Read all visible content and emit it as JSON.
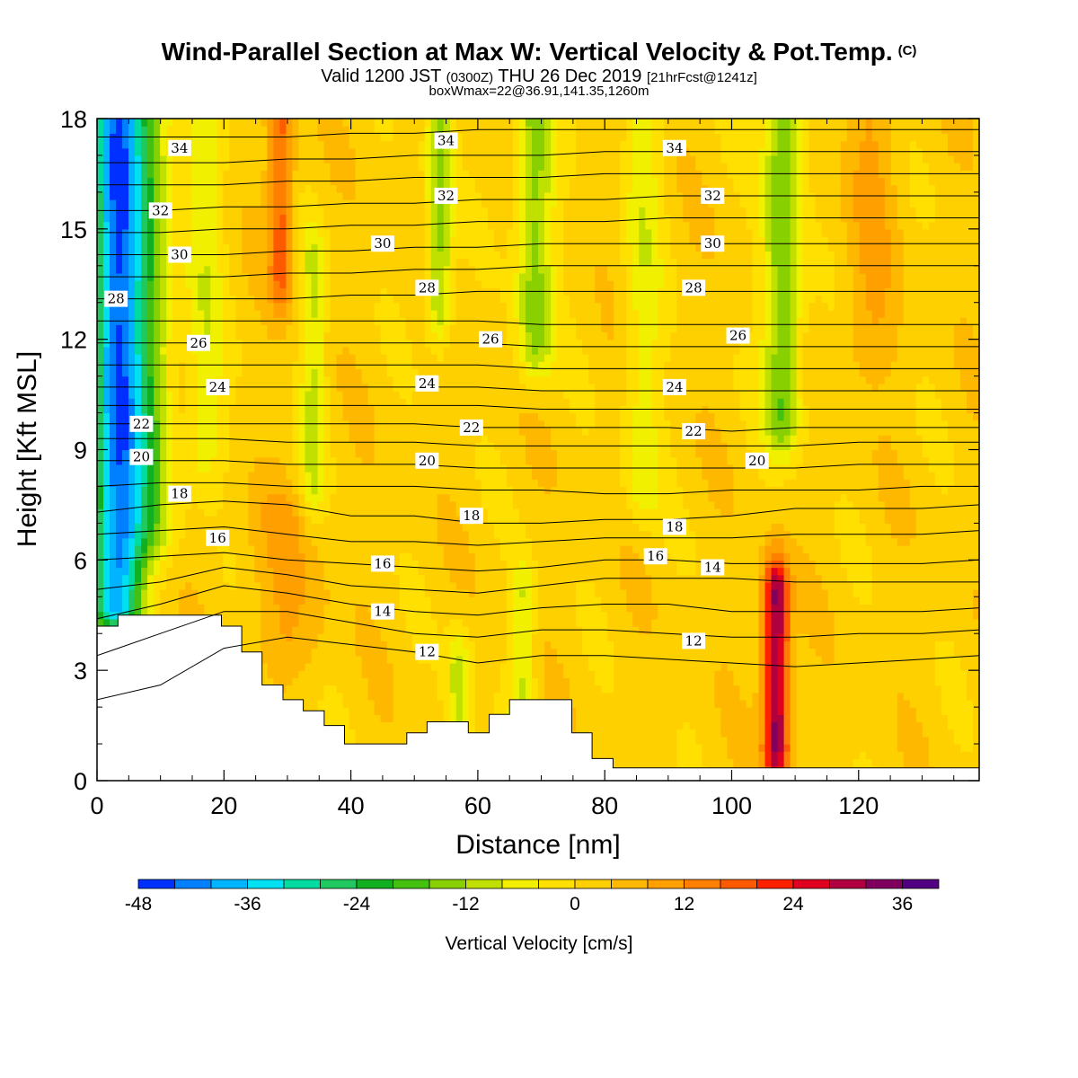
{
  "title": {
    "main": "Wind-Parallel Section at Max W: Vertical Velocity & Pot.Temp.",
    "copyright": "(C)",
    "valid_prefix": "Valid 1200 JST",
    "valid_z": "(0300Z)",
    "valid_date": "THU 26 Dec 2019",
    "valid_fcst": "[21hrFcst@1241z]",
    "box": "boxWmax=22@36.91,141.35,1260m"
  },
  "chart_data": {
    "type": "heatmap",
    "xlabel": "Distance [nm]",
    "ylabel": "Height [Kft MSL]",
    "xlim": [
      0,
      139
    ],
    "ylim": [
      0,
      18
    ],
    "xticks": [
      0,
      20,
      40,
      60,
      80,
      100,
      120
    ],
    "yticks": [
      0,
      3,
      6,
      9,
      12,
      15,
      18
    ],
    "colorbar": {
      "label": "Vertical Velocity [cm/s]",
      "ticks": [
        -48,
        -36,
        -24,
        -12,
        0,
        12,
        24,
        36
      ],
      "levels": [
        -48,
        -44,
        -40,
        -36,
        -32,
        -28,
        -24,
        -20,
        -16,
        -12,
        -8,
        -4,
        0,
        4,
        8,
        12,
        16,
        20,
        24,
        28,
        32,
        36,
        40
      ],
      "colors": [
        "#0030ff",
        "#0080ff",
        "#00b4ff",
        "#00e0f0",
        "#00dca0",
        "#20c860",
        "#10b020",
        "#44c010",
        "#88d000",
        "#c0e000",
        "#f0f000",
        "#ffe000",
        "#ffd000",
        "#ffb800",
        "#ffa000",
        "#ff8000",
        "#ff5a00",
        "#ff2000",
        "#e00020",
        "#b00040",
        "#800060",
        "#500080"
      ]
    },
    "field": {
      "background_value": 2,
      "features": [
        {
          "x": 3,
          "y0": 5,
          "y1": 18,
          "width": 4,
          "value": -40
        },
        {
          "x": 8,
          "y0": 7,
          "y1": 18,
          "width": 4,
          "value": -14
        },
        {
          "x": 17,
          "y0": 9,
          "y1": 18,
          "width": 3,
          "value": -6
        },
        {
          "x": 29,
          "y0": 14,
          "y1": 18,
          "width": 2,
          "value": 18
        },
        {
          "x": 34,
          "y0": 8,
          "y1": 14,
          "width": 2,
          "value": -8
        },
        {
          "x": 54,
          "y0": 13,
          "y1": 18,
          "width": 2,
          "value": -14
        },
        {
          "x": 69,
          "y0": 12,
          "y1": 18,
          "width": 3,
          "value": -14
        },
        {
          "x": 86,
          "y0": 8,
          "y1": 18,
          "width": 3,
          "value": -6
        },
        {
          "x": 108,
          "y0": 10,
          "y1": 18,
          "width": 3,
          "value": -16
        },
        {
          "x": 107,
          "y0": 1,
          "y1": 5,
          "width": 2,
          "value": 34
        },
        {
          "x": 57,
          "y0": 1,
          "y1": 3,
          "width": 2,
          "value": -10
        },
        {
          "x": 67,
          "y0": 2,
          "y1": 5,
          "width": 2,
          "value": -8
        },
        {
          "x": 122,
          "y0": 12,
          "y1": 18,
          "width": 4,
          "value": 8
        },
        {
          "x": 30,
          "y0": 4,
          "y1": 7,
          "width": 6,
          "value": 8
        }
      ]
    },
    "terrain": {
      "x": [
        0,
        3.3,
        3.3,
        19.6,
        19.6,
        22.8,
        22.8,
        26,
        26,
        29.3,
        29.3,
        32.5,
        32.5,
        35.8,
        35.8,
        39,
        39,
        48.8,
        48.8,
        52,
        52,
        58.5,
        58.5,
        61.8,
        61.8,
        65,
        65,
        74.8,
        74.8,
        78,
        78,
        81.3,
        81.3,
        139
      ],
      "height": [
        4.2,
        4.2,
        4.5,
        4.5,
        4.2,
        4.2,
        3.5,
        3.5,
        2.6,
        2.6,
        2.2,
        2.2,
        1.9,
        1.9,
        1.5,
        1.5,
        1.0,
        1.0,
        1.3,
        1.3,
        1.6,
        1.6,
        1.3,
        1.3,
        1.8,
        1.8,
        2.2,
        2.2,
        1.3,
        1.3,
        0.6,
        0.6,
        0.35,
        0.35
      ]
    },
    "theta_contours": {
      "levels": [
        12,
        13,
        14,
        15,
        16,
        17,
        18,
        19,
        20,
        21,
        22,
        23,
        24,
        25,
        26,
        27,
        28,
        29,
        30,
        31,
        32,
        33,
        34,
        35
      ],
      "x": [
        0,
        10,
        20,
        30,
        40,
        50,
        60,
        70,
        80,
        90,
        100,
        110,
        120,
        130,
        139
      ],
      "heights": {
        "12": [
          2.2,
          2.6,
          3.6,
          3.9,
          3.7,
          3.5,
          3.2,
          3.4,
          3.4,
          3.3,
          3.2,
          3.1,
          3.2,
          3.3,
          3.4
        ],
        "13": [
          3.4,
          4.0,
          4.6,
          4.6,
          4.3,
          4.0,
          3.9,
          4.1,
          4.1,
          4.0,
          3.9,
          3.9,
          4.0,
          4.0,
          4.1
        ],
        "14": [
          4.4,
          4.8,
          5.3,
          5.1,
          4.8,
          4.6,
          4.5,
          4.7,
          4.8,
          4.8,
          4.6,
          4.6,
          4.6,
          4.6,
          4.7
        ],
        "15": [
          5.2,
          5.4,
          5.8,
          5.6,
          5.3,
          5.2,
          5.1,
          5.3,
          5.5,
          5.5,
          5.5,
          5.4,
          5.4,
          5.4,
          5.4
        ],
        "16": [
          6.0,
          6.1,
          6.2,
          6.0,
          5.9,
          5.8,
          5.7,
          5.8,
          6.0,
          6.0,
          5.9,
          5.9,
          5.9,
          5.9,
          6.0
        ],
        "17": [
          6.7,
          6.8,
          6.9,
          6.7,
          6.5,
          6.5,
          6.4,
          6.5,
          6.6,
          6.6,
          6.6,
          6.7,
          6.7,
          6.7,
          6.8
        ],
        "18": [
          7.3,
          7.5,
          7.6,
          7.5,
          7.2,
          7.2,
          7.0,
          7.0,
          7.1,
          7.1,
          7.2,
          7.4,
          7.4,
          7.4,
          7.5
        ],
        "19": [
          8.0,
          8.1,
          8.1,
          8.0,
          8.0,
          8.0,
          7.9,
          7.9,
          7.8,
          7.8,
          7.9,
          7.9,
          7.9,
          8.0,
          8.0
        ],
        "20": [
          8.7,
          8.7,
          8.7,
          8.6,
          8.6,
          8.6,
          8.5,
          8.5,
          8.5,
          8.5,
          8.5,
          8.5,
          8.6,
          8.6,
          8.6
        ],
        "21": [
          9.3,
          9.3,
          9.3,
          9.2,
          9.2,
          9.2,
          9.1,
          9.1,
          9.1,
          9.1,
          9.1,
          9.1,
          9.2,
          9.2,
          9.2
        ],
        "22": [
          9.7,
          9.7,
          9.7,
          9.7,
          9.7,
          9.7,
          9.6,
          9.6,
          9.6,
          9.6,
          9.5,
          9.6,
          9.6,
          9.6,
          9.6
        ],
        "23": [
          10.2,
          10.2,
          10.2,
          10.2,
          10.2,
          10.2,
          10.2,
          10.1,
          10.1,
          10.1,
          10.1,
          10.1,
          10.1,
          10.1,
          10.1
        ],
        "24": [
          10.7,
          10.7,
          10.7,
          10.7,
          10.7,
          10.7,
          10.7,
          10.6,
          10.6,
          10.6,
          10.6,
          10.6,
          10.6,
          10.6,
          10.6
        ],
        "25": [
          11.3,
          11.3,
          11.3,
          11.3,
          11.3,
          11.3,
          11.3,
          11.2,
          11.2,
          11.2,
          11.2,
          11.2,
          11.2,
          11.2,
          11.2
        ],
        "26": [
          11.9,
          11.9,
          11.9,
          11.9,
          11.9,
          11.9,
          11.9,
          11.8,
          11.8,
          11.8,
          11.8,
          11.8,
          11.8,
          11.8,
          11.8
        ],
        "27": [
          12.5,
          12.5,
          12.5,
          12.5,
          12.5,
          12.5,
          12.5,
          12.4,
          12.4,
          12.4,
          12.4,
          12.4,
          12.4,
          12.4,
          12.4
        ],
        "28": [
          13.1,
          13.1,
          13.1,
          13.1,
          13.2,
          13.2,
          13.3,
          13.3,
          13.3,
          13.3,
          13.3,
          13.3,
          13.3,
          13.3,
          13.3
        ],
        "29": [
          13.7,
          13.7,
          13.7,
          13.8,
          13.8,
          13.9,
          13.9,
          14.0,
          14.0,
          14.0,
          14.0,
          14.0,
          14.0,
          14.0,
          14.0
        ],
        "30": [
          14.3,
          14.3,
          14.3,
          14.4,
          14.4,
          14.5,
          14.5,
          14.6,
          14.6,
          14.6,
          14.6,
          14.6,
          14.6,
          14.6,
          14.6
        ],
        "31": [
          14.9,
          14.9,
          15.0,
          15.0,
          15.1,
          15.1,
          15.2,
          15.2,
          15.2,
          15.3,
          15.3,
          15.3,
          15.3,
          15.3,
          15.3
        ],
        "32": [
          15.5,
          15.5,
          15.6,
          15.6,
          15.7,
          15.7,
          15.8,
          15.8,
          15.8,
          15.9,
          15.9,
          15.9,
          15.9,
          15.9,
          15.9
        ],
        "33": [
          16.2,
          16.2,
          16.2,
          16.3,
          16.3,
          16.4,
          16.4,
          16.4,
          16.5,
          16.5,
          16.5,
          16.5,
          16.5,
          16.5,
          16.5
        ],
        "34": [
          16.8,
          16.8,
          16.8,
          16.9,
          16.9,
          17.0,
          17.0,
          17.0,
          17.1,
          17.1,
          17.1,
          17.1,
          17.1,
          17.1,
          17.1
        ],
        "35": [
          17.5,
          17.5,
          17.5,
          17.5,
          17.6,
          17.6,
          17.7,
          17.7,
          17.7,
          17.7,
          17.7,
          17.7,
          17.7,
          17.7,
          17.7
        ]
      }
    },
    "contour_labels": [
      {
        "text": "34",
        "x": 13,
        "y": 17.2
      },
      {
        "text": "34",
        "x": 55,
        "y": 17.4
      },
      {
        "text": "34",
        "x": 91,
        "y": 17.2
      },
      {
        "text": "32",
        "x": 10,
        "y": 15.5
      },
      {
        "text": "32",
        "x": 55,
        "y": 15.9
      },
      {
        "text": "32",
        "x": 97,
        "y": 15.9
      },
      {
        "text": "30",
        "x": 13,
        "y": 14.3
      },
      {
        "text": "30",
        "x": 45,
        "y": 14.6
      },
      {
        "text": "30",
        "x": 97,
        "y": 14.6
      },
      {
        "text": "28",
        "x": 3,
        "y": 13.1
      },
      {
        "text": "28",
        "x": 52,
        "y": 13.4
      },
      {
        "text": "28",
        "x": 94,
        "y": 13.4
      },
      {
        "text": "26",
        "x": 16,
        "y": 11.9
      },
      {
        "text": "26",
        "x": 62,
        "y": 12.0
      },
      {
        "text": "26",
        "x": 101,
        "y": 12.1
      },
      {
        "text": "24",
        "x": 19,
        "y": 10.7
      },
      {
        "text": "24",
        "x": 52,
        "y": 10.8
      },
      {
        "text": "24",
        "x": 91,
        "y": 10.7
      },
      {
        "text": "22",
        "x": 7,
        "y": 9.7
      },
      {
        "text": "22",
        "x": 59,
        "y": 9.6
      },
      {
        "text": "22",
        "x": 94,
        "y": 9.5
      },
      {
        "text": "20",
        "x": 7,
        "y": 8.8
      },
      {
        "text": "20",
        "x": 52,
        "y": 8.7
      },
      {
        "text": "20",
        "x": 104,
        "y": 8.7
      },
      {
        "text": "18",
        "x": 13,
        "y": 7.8
      },
      {
        "text": "18",
        "x": 59,
        "y": 7.2
      },
      {
        "text": "18",
        "x": 91,
        "y": 6.9
      },
      {
        "text": "16",
        "x": 19,
        "y": 6.6
      },
      {
        "text": "16",
        "x": 45,
        "y": 5.9
      },
      {
        "text": "16",
        "x": 88,
        "y": 6.1
      },
      {
        "text": "14",
        "x": 97,
        "y": 5.8
      },
      {
        "text": "14",
        "x": 45,
        "y": 4.6
      },
      {
        "text": "12",
        "x": 52,
        "y": 3.5
      },
      {
        "text": "12",
        "x": 94,
        "y": 3.8
      }
    ]
  }
}
